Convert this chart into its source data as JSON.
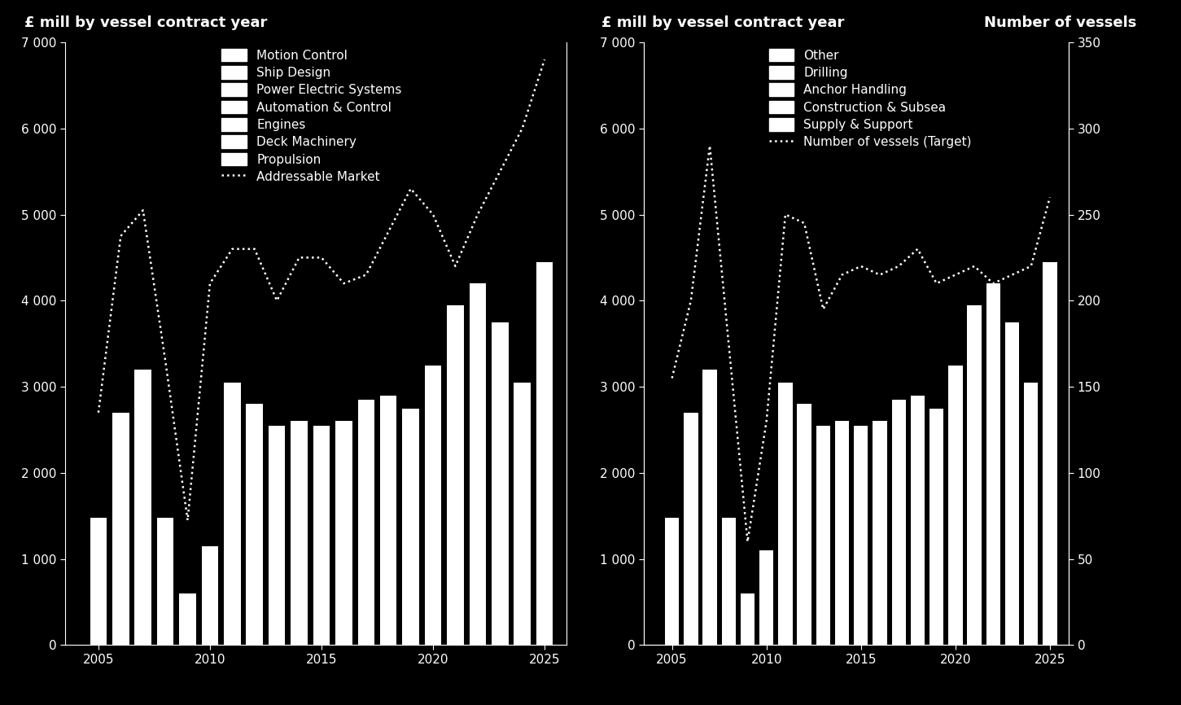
{
  "years": [
    2005,
    2006,
    2007,
    2008,
    2009,
    2010,
    2011,
    2012,
    2013,
    2014,
    2015,
    2016,
    2017,
    2018,
    2019,
    2020,
    2021,
    2022,
    2023,
    2024,
    2025
  ],
  "bar_values_left": [
    1480,
    2700,
    3200,
    1480,
    600,
    1150,
    3050,
    2800,
    2550,
    2600,
    2550,
    2600,
    2850,
    2900,
    2750,
    3250,
    3950,
    4200,
    3750,
    3050,
    4450
  ],
  "bar_values_right": [
    1480,
    2700,
    3200,
    1480,
    600,
    1100,
    3050,
    2800,
    2550,
    2600,
    2550,
    2600,
    2850,
    2900,
    2750,
    3250,
    3950,
    4200,
    3750,
    3050,
    4450
  ],
  "dotted_left_years": [
    2005,
    2006,
    2007,
    2008,
    2009,
    2010,
    2011,
    2012,
    2013,
    2014,
    2015,
    2016,
    2017,
    2018,
    2019,
    2020,
    2021,
    2022,
    2023,
    2024,
    2025
  ],
  "dotted_left": [
    2700,
    4750,
    5050,
    3300,
    1450,
    4200,
    4600,
    4600,
    4000,
    4500,
    4500,
    4200,
    4300,
    4800,
    5300,
    5000,
    4400,
    5000,
    5500,
    6000,
    6800
  ],
  "dotted_right_years": [
    2005,
    2006,
    2007,
    2008,
    2009,
    2010,
    2011,
    2012,
    2013,
    2014,
    2015,
    2016,
    2017,
    2018,
    2019,
    2020,
    2021,
    2022,
    2023,
    2024,
    2025
  ],
  "dotted_right": [
    155,
    200,
    290,
    175,
    60,
    130,
    250,
    245,
    195,
    215,
    220,
    215,
    220,
    230,
    210,
    215,
    220,
    210,
    215,
    220,
    260
  ],
  "left_legend": [
    "Motion Control",
    "Ship Design",
    "Power Electric Systems",
    "Automation & Control",
    "Engines",
    "Deck Machinery",
    "Propulsion",
    "Addressable Market"
  ],
  "right_legend": [
    "Other",
    "Drilling",
    "Anchor Handling",
    "Construction & Subsea",
    "Supply & Support",
    "Number of vessels (Target)"
  ],
  "left_title": "£ mill by vessel contract year",
  "right_title_left": "£ mill by vessel contract year",
  "right_title_right": "Number of vessels",
  "ylim_bar": [
    0,
    7000
  ],
  "ylim_vessels": [
    0,
    350
  ],
  "yticks_bar": [
    0,
    1000,
    2000,
    3000,
    4000,
    5000,
    6000,
    7000
  ],
  "ytick_labels_bar": [
    "0",
    "1 000",
    "2 000",
    "3 000",
    "4 000",
    "5 000",
    "6 000",
    "7 000"
  ],
  "yticks_vessels": [
    0,
    50,
    100,
    150,
    200,
    250,
    300,
    350
  ],
  "ytick_labels_vessels": [
    "0",
    "50",
    "100",
    "150",
    "200",
    "250",
    "300",
    "350"
  ],
  "xticks": [
    2005,
    2010,
    2015,
    2020,
    2025
  ],
  "xlim": [
    2003.5,
    2026
  ],
  "bg_color": "#000000",
  "bar_color": "#ffffff",
  "text_color": "#ffffff",
  "dotted_color": "#ffffff",
  "bar_width": 0.75,
  "title_fontsize": 13,
  "tick_fontsize": 11,
  "legend_fontsize": 11
}
